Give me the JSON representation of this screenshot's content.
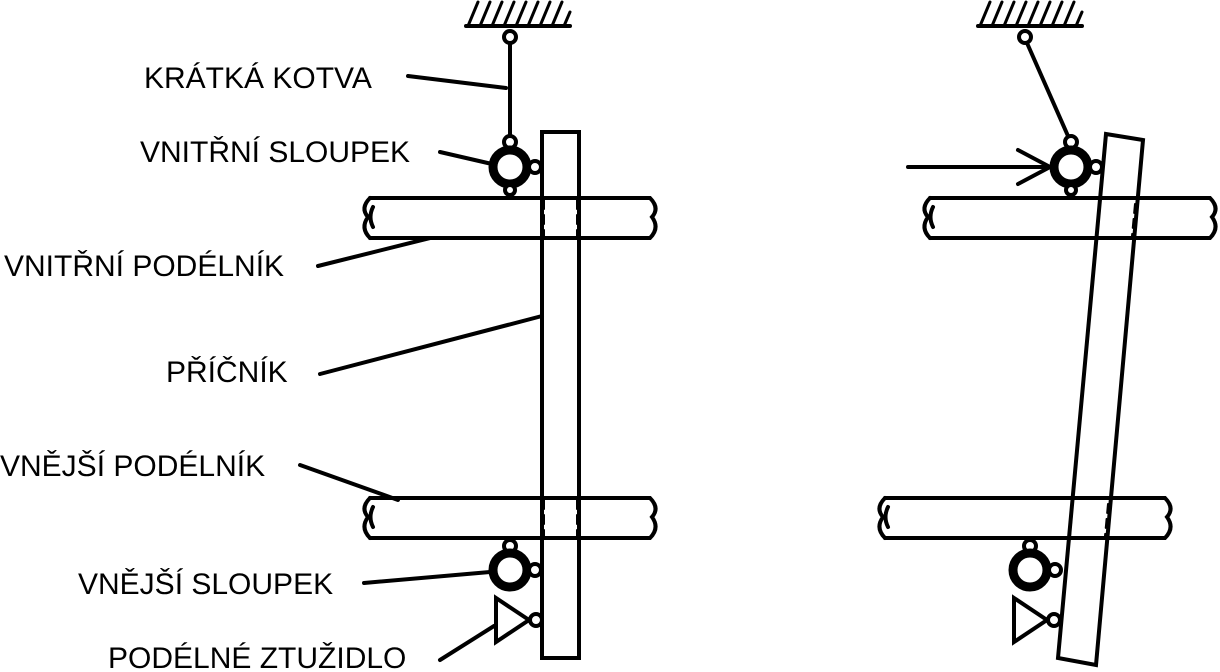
{
  "labels": {
    "kratka_kotva": "KRÁTKÁ KOTVA",
    "vnitrni_sloupek": "VNITŘNÍ SLOUPEK",
    "vnitrni_podelnik": "VNITŘNÍ PODÉLNÍK",
    "pricnik": "PŘÍČNÍK",
    "vnejsi_podelnik": "VNĚJŠÍ PODÉLNÍK",
    "vnejsi_sloupek": "VNĚJŠÍ SLOUPEK",
    "podelne_ztuzidlo": "PODÉLNÉ ZTUŽIDLO"
  },
  "colors": {
    "stroke": "#000000",
    "background": "#ffffff"
  }
}
